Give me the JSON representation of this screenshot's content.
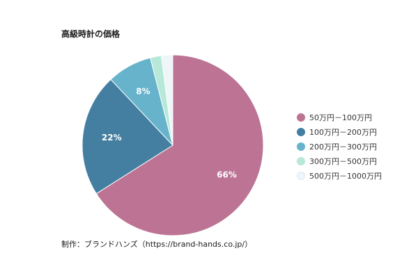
{
  "chart_data": {
    "type": "pie",
    "title": "高級時計の価格",
    "categories": [
      "50万円－100万円",
      "100万円－200万円",
      "200万円－300万円",
      "300万円－500万円",
      "500万円－1000万円"
    ],
    "values": [
      66,
      22,
      8,
      2,
      2
    ],
    "data_labels": [
      "66%",
      "22%",
      "8%",
      "",
      ""
    ],
    "colors": [
      "#bc7394",
      "#447fa1",
      "#66b3cb",
      "#b7e8d8",
      "#eef6f9"
    ],
    "legend_position": "right",
    "start": "top",
    "direction": "clockwise"
  },
  "footer": {
    "source": "制作：ブランドハンズ（https://brand-hands.co.jp/）"
  }
}
